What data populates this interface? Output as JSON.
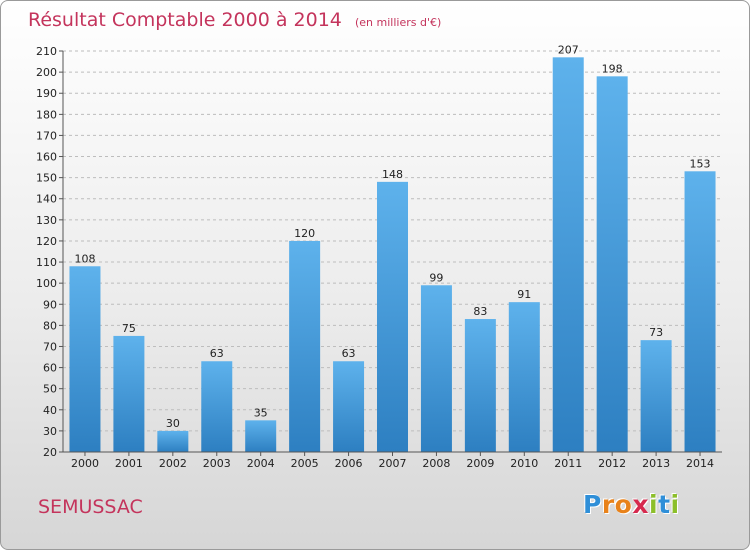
{
  "title": "Résultat Comptable 2000 à 2014",
  "subtitle": "(en milliers d'€)",
  "place": "SEMUSSAC",
  "logo": {
    "letters": [
      "P",
      "r",
      "o",
      "x",
      "i",
      "t",
      "i"
    ],
    "colors": [
      "#2f8fd8",
      "#e8821a",
      "#e8821a",
      "#d62a4e",
      "#8cbf2a",
      "#2f8fd8",
      "#8cbf2a"
    ]
  },
  "colors": {
    "bar_light": "#5eb2ec",
    "bar_dark": "#2d7fc1",
    "text_accent": "#c4345c",
    "grid": "#bdbdbd"
  },
  "chart_data": {
    "type": "bar",
    "categories": [
      "2000",
      "2001",
      "2002",
      "2003",
      "2004",
      "2005",
      "2006",
      "2007",
      "2008",
      "2009",
      "2010",
      "2011",
      "2012",
      "2013",
      "2014"
    ],
    "values": [
      108,
      75,
      30,
      63,
      35,
      120,
      63,
      148,
      99,
      83,
      91,
      207,
      198,
      73,
      153
    ],
    "ylim": [
      20,
      210
    ],
    "yticks": [
      20,
      30,
      40,
      50,
      60,
      70,
      80,
      90,
      100,
      110,
      120,
      130,
      140,
      150,
      160,
      170,
      180,
      190,
      200,
      210
    ],
    "grid": true,
    "xlabel": "",
    "ylabel": ""
  }
}
